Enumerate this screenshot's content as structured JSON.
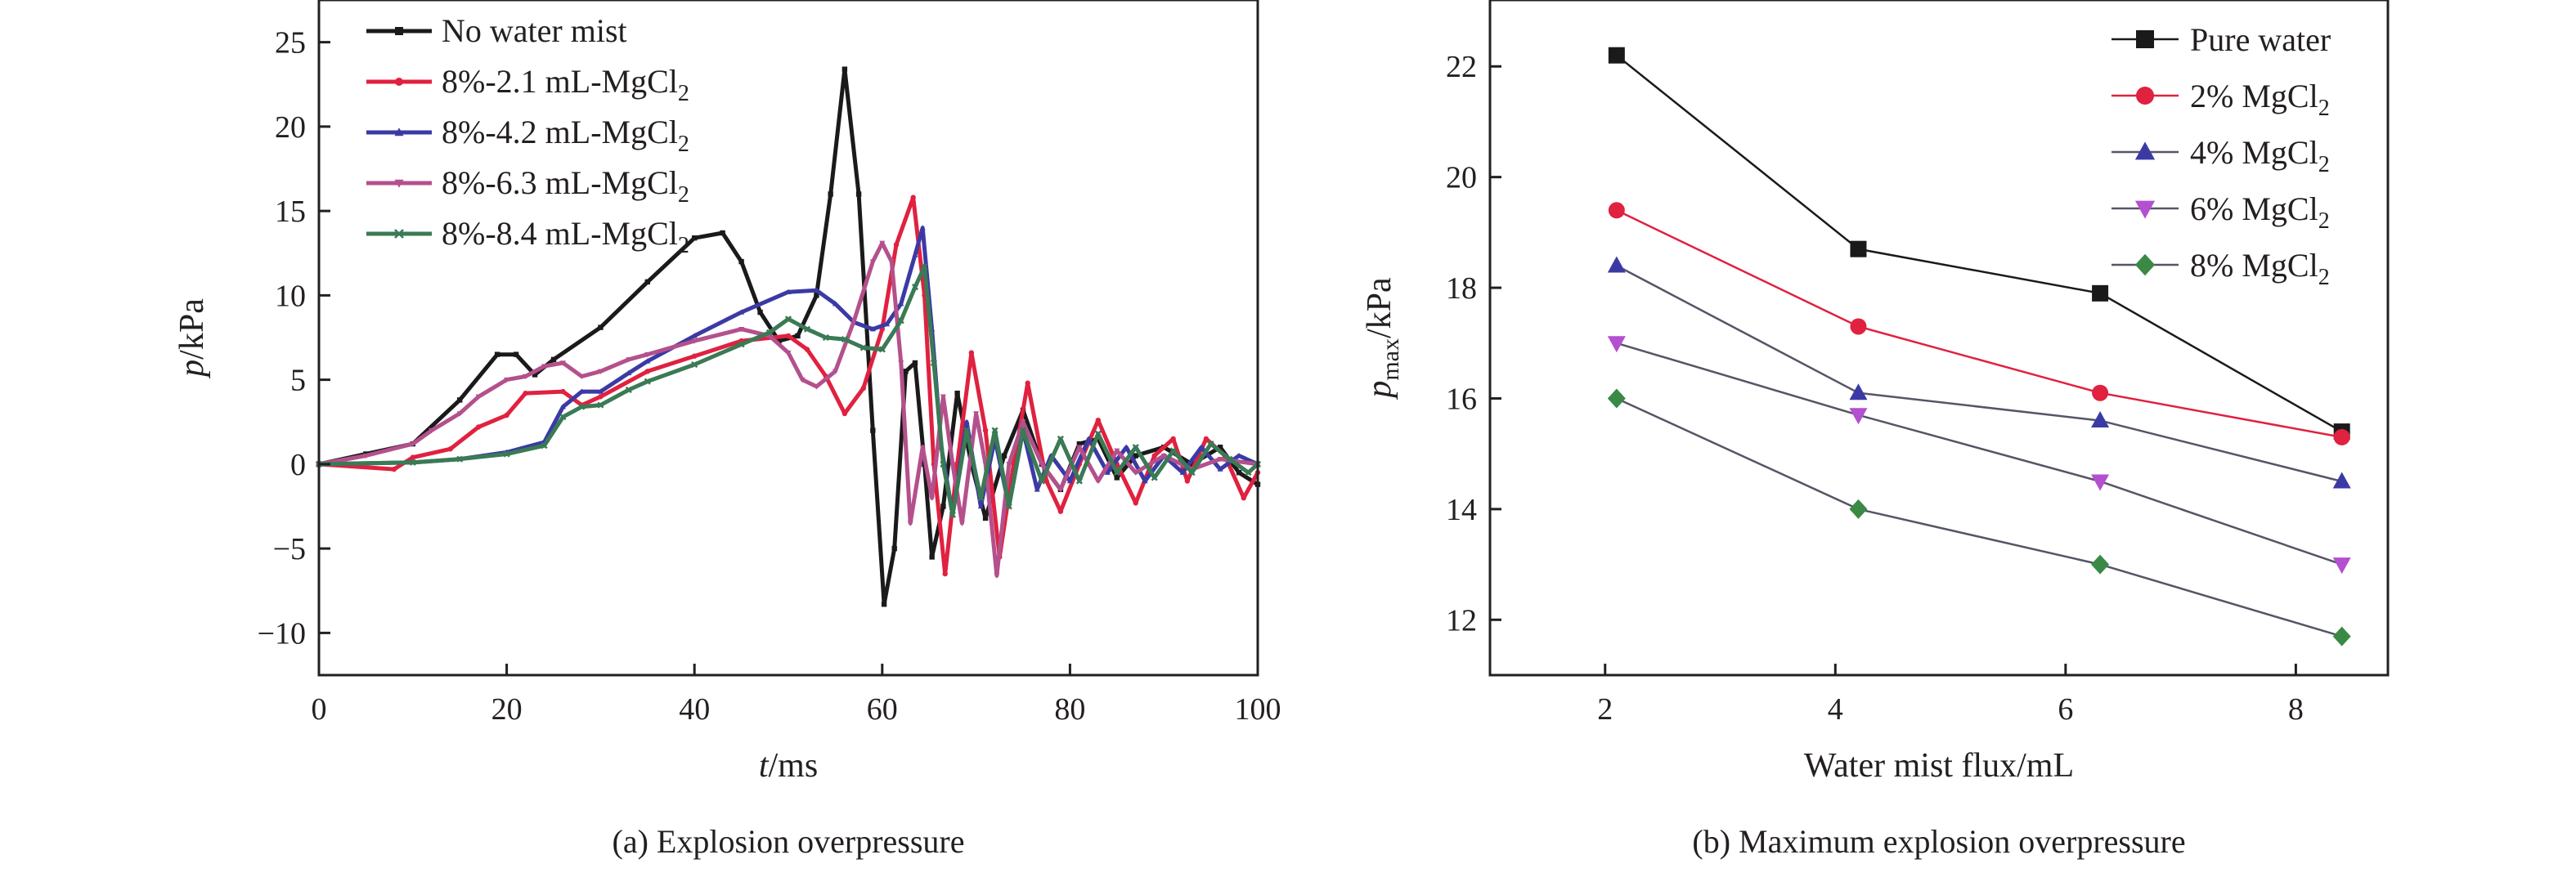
{
  "captions": {
    "a": "(a) Explosion overpressure",
    "b": "(b) Maximum explosion overpressure"
  },
  "axes": {
    "a": {
      "ylabel_main": "p",
      "ylabel_unit": "/kPa",
      "xlabel_main": "t",
      "xlabel_unit": "/ms"
    },
    "b": {
      "ylabel_main": "p",
      "ylabel_sub": "max",
      "ylabel_unit": "/kPa",
      "xlabel": "Water mist flux/mL"
    }
  },
  "chart_data": [
    {
      "type": "line",
      "caption": "(a) Explosion overpressure",
      "xlabel": "t/ms",
      "ylabel": "p/kPa",
      "xlim": [
        0,
        100
      ],
      "ylim": [
        -12.5,
        27.5
      ],
      "xticks": [
        0,
        20,
        40,
        60,
        80,
        100
      ],
      "yticks": [
        -10,
        -5,
        0,
        5,
        10,
        15,
        20,
        25
      ],
      "legend_position": "top-left",
      "series": [
        {
          "name": "No water mist",
          "legend_prefix": "No water mist",
          "legend_sub": "",
          "color": "#1a1a1a",
          "marker": "square",
          "points": [
            [
              0,
              0
            ],
            [
              5,
              0.6
            ],
            [
              10,
              1.2
            ],
            [
              15,
              3.8
            ],
            [
              19,
              6.5
            ],
            [
              21,
              6.5
            ],
            [
              23,
              5.3
            ],
            [
              25,
              6.2
            ],
            [
              30,
              8.1
            ],
            [
              35,
              10.8
            ],
            [
              40,
              13.4
            ],
            [
              43,
              13.7
            ],
            [
              45,
              12.0
            ],
            [
              47,
              9.0
            ],
            [
              49,
              7.3
            ],
            [
              51,
              7.6
            ],
            [
              53,
              10.0
            ],
            [
              54.5,
              16.0
            ],
            [
              56,
              23.4
            ],
            [
              57.5,
              16.0
            ],
            [
              59,
              2.0
            ],
            [
              60.2,
              -8.3
            ],
            [
              61.3,
              -5.0
            ],
            [
              62.5,
              5.5
            ],
            [
              63.5,
              6.0
            ],
            [
              64.5,
              0.0
            ],
            [
              65.3,
              -5.5
            ],
            [
              66.5,
              -2.5
            ],
            [
              68,
              4.2
            ],
            [
              69.5,
              0.0
            ],
            [
              71,
              -3.2
            ],
            [
              73,
              0.5
            ],
            [
              75,
              3.2
            ],
            [
              77,
              0.0
            ],
            [
              79,
              -1.5
            ],
            [
              81,
              1.2
            ],
            [
              83,
              1.5
            ],
            [
              85,
              -0.8
            ],
            [
              87,
              0.5
            ],
            [
              90,
              1.0
            ],
            [
              93,
              0.0
            ],
            [
              96,
              1.0
            ],
            [
              98,
              -0.5
            ],
            [
              100,
              -1.2
            ]
          ]
        },
        {
          "name": "8%-2.1 mL-MgCl2",
          "legend_prefix": "8%-2.1 mL-MgCl",
          "legend_sub": "2",
          "color": "#e0213f",
          "marker": "circle",
          "points": [
            [
              0,
              0
            ],
            [
              8,
              -0.3
            ],
            [
              10,
              0.4
            ],
            [
              14,
              0.9
            ],
            [
              17,
              2.2
            ],
            [
              20,
              2.9
            ],
            [
              22,
              4.2
            ],
            [
              26,
              4.3
            ],
            [
              28,
              3.5
            ],
            [
              30,
              4.0
            ],
            [
              35,
              5.5
            ],
            [
              40,
              6.4
            ],
            [
              45,
              7.3
            ],
            [
              50,
              7.6
            ],
            [
              52,
              6.8
            ],
            [
              54,
              5.2
            ],
            [
              56,
              3.0
            ],
            [
              58,
              4.5
            ],
            [
              60,
              8.0
            ],
            [
              61.5,
              13.0
            ],
            [
              63.3,
              15.8
            ],
            [
              64.5,
              10.0
            ],
            [
              65.5,
              0.0
            ],
            [
              66.7,
              -6.5
            ],
            [
              68,
              0.0
            ],
            [
              69.5,
              6.6
            ],
            [
              71,
              2.0
            ],
            [
              72.5,
              -5.5
            ],
            [
              74,
              0.0
            ],
            [
              75.5,
              4.8
            ],
            [
              77.5,
              -1.0
            ],
            [
              79,
              -2.8
            ],
            [
              81,
              0.0
            ],
            [
              83,
              2.6
            ],
            [
              85,
              0.0
            ],
            [
              87,
              -2.3
            ],
            [
              89,
              0.5
            ],
            [
              91,
              1.5
            ],
            [
              92.5,
              -1.0
            ],
            [
              94.5,
              1.5
            ],
            [
              96.5,
              0.5
            ],
            [
              98.5,
              -2.0
            ],
            [
              100,
              -0.5
            ]
          ]
        },
        {
          "name": "8%-4.2 mL-MgCl2",
          "legend_prefix": "8%-4.2 mL-MgCl",
          "legend_sub": "2",
          "color": "#3b3aa5",
          "marker": "triangle",
          "points": [
            [
              0,
              0
            ],
            [
              10,
              0.1
            ],
            [
              15,
              0.3
            ],
            [
              20,
              0.7
            ],
            [
              24,
              1.3
            ],
            [
              26,
              3.4
            ],
            [
              28,
              4.3
            ],
            [
              30,
              4.3
            ],
            [
              33,
              5.4
            ],
            [
              35,
              6.1
            ],
            [
              40,
              7.6
            ],
            [
              45,
              9.0
            ],
            [
              50,
              10.2
            ],
            [
              53,
              10.3
            ],
            [
              55,
              9.5
            ],
            [
              57,
              8.4
            ],
            [
              59,
              8.0
            ],
            [
              60.5,
              8.3
            ],
            [
              62,
              9.5
            ],
            [
              63.5,
              12.4
            ],
            [
              64.3,
              14.0
            ],
            [
              65.3,
              8.0
            ],
            [
              66.3,
              1.0
            ],
            [
              67.5,
              -3.0
            ],
            [
              69,
              2.5
            ],
            [
              70.5,
              -2.5
            ],
            [
              72,
              1.5
            ],
            [
              73.5,
              -2.5
            ],
            [
              75,
              2.0
            ],
            [
              76.5,
              -1.5
            ],
            [
              78,
              0.5
            ],
            [
              80,
              -1.0
            ],
            [
              82,
              1.5
            ],
            [
              84,
              -0.5
            ],
            [
              86,
              1.0
            ],
            [
              88,
              -1.0
            ],
            [
              90,
              0.5
            ],
            [
              92,
              -0.5
            ],
            [
              94,
              1.0
            ],
            [
              96,
              -0.3
            ],
            [
              98,
              0.5
            ],
            [
              100,
              0.0
            ]
          ]
        },
        {
          "name": "8%-6.3 mL-MgCl2",
          "legend_prefix": "8%-6.3 mL-MgCl",
          "legend_sub": "2",
          "color": "#b4508c",
          "marker": "down-triangle",
          "points": [
            [
              0,
              0
            ],
            [
              5,
              0.5
            ],
            [
              10,
              1.2
            ],
            [
              12,
              2.0
            ],
            [
              15,
              3.0
            ],
            [
              17,
              4.0
            ],
            [
              20,
              5.0
            ],
            [
              22,
              5.2
            ],
            [
              24,
              5.8
            ],
            [
              26,
              6.0
            ],
            [
              28,
              5.2
            ],
            [
              30,
              5.5
            ],
            [
              33,
              6.2
            ],
            [
              35,
              6.5
            ],
            [
              40,
              7.3
            ],
            [
              45,
              8.0
            ],
            [
              48,
              7.6
            ],
            [
              50,
              6.6
            ],
            [
              51.5,
              5.0
            ],
            [
              53,
              4.6
            ],
            [
              55,
              5.5
            ],
            [
              57,
              8.5
            ],
            [
              59,
              12.0
            ],
            [
              60,
              13.1
            ],
            [
              61,
              12.0
            ],
            [
              62,
              6.0
            ],
            [
              63,
              -3.5
            ],
            [
              64.3,
              1.0
            ],
            [
              65.3,
              -2.0
            ],
            [
              66.5,
              4.0
            ],
            [
              67.5,
              0.0
            ],
            [
              68.5,
              -3.5
            ],
            [
              70,
              3.0
            ],
            [
              71,
              0.0
            ],
            [
              72.2,
              -6.6
            ],
            [
              73.5,
              0.0
            ],
            [
              75,
              2.5
            ],
            [
              77,
              0.0
            ],
            [
              79,
              -1.5
            ],
            [
              81,
              1.0
            ],
            [
              83,
              -1.0
            ],
            [
              85,
              0.8
            ],
            [
              87,
              -0.5
            ],
            [
              90,
              0.5
            ],
            [
              93,
              -0.3
            ],
            [
              96,
              0.3
            ],
            [
              100,
              0.0
            ]
          ]
        },
        {
          "name": "8%-8.4 mL-MgCl2",
          "legend_prefix": "8%-8.4 mL-MgCl",
          "legend_sub": "2",
          "color": "#3a7a55",
          "marker": "x",
          "points": [
            [
              0,
              0
            ],
            [
              10,
              0.1
            ],
            [
              15,
              0.3
            ],
            [
              20,
              0.6
            ],
            [
              24,
              1.1
            ],
            [
              26,
              2.8
            ],
            [
              28,
              3.4
            ],
            [
              30,
              3.5
            ],
            [
              33,
              4.4
            ],
            [
              35,
              4.9
            ],
            [
              40,
              5.9
            ],
            [
              45,
              7.1
            ],
            [
              48,
              7.8
            ],
            [
              50,
              8.6
            ],
            [
              52,
              8.0
            ],
            [
              54,
              7.5
            ],
            [
              56,
              7.4
            ],
            [
              58,
              6.9
            ],
            [
              60,
              6.8
            ],
            [
              62,
              8.5
            ],
            [
              63.5,
              10.5
            ],
            [
              64.5,
              11.7
            ],
            [
              65.5,
              6.0
            ],
            [
              66.5,
              0.0
            ],
            [
              67.5,
              -3.0
            ],
            [
              69,
              2.0
            ],
            [
              70.5,
              -2.0
            ],
            [
              72,
              2.0
            ],
            [
              73.5,
              -2.5
            ],
            [
              75,
              2.0
            ],
            [
              77,
              -1.0
            ],
            [
              79,
              1.5
            ],
            [
              81,
              -1.0
            ],
            [
              83,
              1.8
            ],
            [
              85,
              -0.5
            ],
            [
              87,
              1.0
            ],
            [
              89,
              -0.8
            ],
            [
              91,
              0.8
            ],
            [
              93,
              -0.5
            ],
            [
              95,
              1.2
            ],
            [
              97,
              0.3
            ],
            [
              99,
              -0.5
            ],
            [
              100,
              0.0
            ]
          ]
        }
      ]
    },
    {
      "type": "line",
      "caption": "(b) Maximum explosion overpressure",
      "xlabel": "Water mist flux/mL",
      "ylabel": "p_max/kPa",
      "xlim": [
        1,
        8.8
      ],
      "ylim": [
        11,
        23.2
      ],
      "xticks": [
        2,
        4,
        6,
        8
      ],
      "yticks": [
        12,
        14,
        16,
        18,
        20,
        22
      ],
      "legend_position": "top-right",
      "x": [
        2.1,
        4.2,
        6.3,
        8.4
      ],
      "series": [
        {
          "name": "Pure water",
          "legend_prefix": "Pure water",
          "legend_sub": "",
          "color": "#1a1a1a",
          "marker": "square",
          "values": [
            22.2,
            18.7,
            17.9,
            15.4
          ]
        },
        {
          "name": "2% MgCl2",
          "legend_prefix": "2% MgCl",
          "legend_sub": "2",
          "color": "#e0213f",
          "marker": "circle",
          "values": [
            19.4,
            17.3,
            16.1,
            15.3
          ]
        },
        {
          "name": "4% MgCl2",
          "legend_prefix": "4% MgCl",
          "legend_sub": "2",
          "color": "#3b3aa5",
          "marker": "triangle",
          "values": [
            18.4,
            16.1,
            15.6,
            14.5
          ]
        },
        {
          "name": "6% MgCl2",
          "legend_prefix": "6% MgCl",
          "legend_sub": "2",
          "color": "#b44fd0",
          "marker": "down-triangle",
          "values": [
            17.0,
            15.7,
            14.5,
            13.0
          ]
        },
        {
          "name": "8% MgCl2",
          "legend_prefix": "8% MgCl",
          "legend_sub": "2",
          "color": "#3a8a45",
          "marker": "diamond",
          "values": [
            16.0,
            14.0,
            13.0,
            11.7
          ]
        }
      ]
    }
  ]
}
